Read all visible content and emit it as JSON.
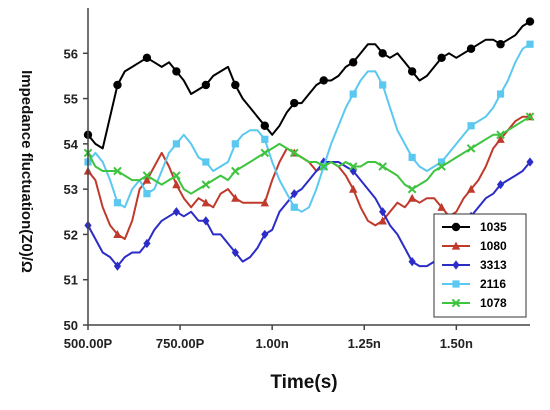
{
  "chart_data": {
    "type": "line",
    "title": "",
    "xlabel": "Time(s)",
    "ylabel": "Impedance fluctuation(Z0)/Ω",
    "xlim": [
      0.5,
      1.7
    ],
    "ylim": [
      50,
      57
    ],
    "x_ticks": [
      {
        "value": 0.5,
        "label": "500.00P"
      },
      {
        "value": 0.75,
        "label": "750.00P"
      },
      {
        "value": 1.0,
        "label": "1.00n"
      },
      {
        "value": 1.25,
        "label": "1.25n"
      },
      {
        "value": 1.5,
        "label": "1.50n"
      }
    ],
    "y_ticks": [
      50,
      51,
      52,
      53,
      54,
      55,
      56
    ],
    "grid": false,
    "legend": "bottom-right",
    "series": [
      {
        "name": "1035",
        "color": "#000000",
        "marker": "circle",
        "x": [
          0.5,
          0.52,
          0.54,
          0.56,
          0.58,
          0.6,
          0.62,
          0.64,
          0.66,
          0.68,
          0.7,
          0.72,
          0.74,
          0.76,
          0.78,
          0.8,
          0.82,
          0.84,
          0.86,
          0.88,
          0.9,
          0.92,
          0.94,
          0.96,
          0.98,
          1.0,
          1.02,
          1.04,
          1.06,
          1.08,
          1.1,
          1.12,
          1.14,
          1.16,
          1.18,
          1.2,
          1.22,
          1.24,
          1.26,
          1.28,
          1.3,
          1.32,
          1.34,
          1.36,
          1.38,
          1.4,
          1.42,
          1.44,
          1.46,
          1.48,
          1.5,
          1.52,
          1.54,
          1.56,
          1.58,
          1.6,
          1.62,
          1.64,
          1.66,
          1.68,
          1.7
        ],
        "y": [
          54.2,
          54.0,
          53.9,
          54.6,
          55.3,
          55.6,
          55.7,
          55.8,
          55.9,
          55.8,
          55.7,
          55.8,
          55.6,
          55.4,
          55.1,
          55.2,
          55.3,
          55.5,
          55.6,
          55.7,
          55.3,
          55.0,
          54.8,
          54.6,
          54.4,
          54.2,
          54.4,
          54.7,
          54.9,
          54.9,
          55.1,
          55.3,
          55.4,
          55.4,
          55.5,
          55.7,
          55.8,
          56.0,
          56.2,
          56.2,
          56.0,
          55.9,
          56.0,
          55.8,
          55.6,
          55.4,
          55.5,
          55.7,
          55.9,
          56.0,
          55.9,
          56.0,
          56.1,
          56.2,
          56.3,
          56.3,
          56.2,
          56.3,
          56.4,
          56.6,
          56.7
        ]
      },
      {
        "name": "1080",
        "color": "#c0392b",
        "marker": "triangle",
        "x": [
          0.5,
          0.52,
          0.54,
          0.56,
          0.58,
          0.6,
          0.62,
          0.64,
          0.66,
          0.68,
          0.7,
          0.72,
          0.74,
          0.76,
          0.78,
          0.8,
          0.82,
          0.84,
          0.86,
          0.88,
          0.9,
          0.92,
          0.94,
          0.96,
          0.98,
          1.0,
          1.02,
          1.04,
          1.06,
          1.08,
          1.1,
          1.12,
          1.14,
          1.16,
          1.18,
          1.2,
          1.22,
          1.24,
          1.26,
          1.28,
          1.3,
          1.32,
          1.34,
          1.36,
          1.38,
          1.4,
          1.42,
          1.44,
          1.46,
          1.48,
          1.5,
          1.52,
          1.54,
          1.56,
          1.58,
          1.6,
          1.62,
          1.64,
          1.66,
          1.68,
          1.7
        ],
        "y": [
          53.4,
          53.2,
          52.6,
          52.2,
          52.0,
          51.9,
          52.3,
          53.0,
          53.2,
          53.5,
          53.8,
          53.5,
          53.1,
          52.8,
          52.6,
          52.8,
          52.7,
          52.6,
          52.9,
          53.0,
          52.8,
          52.7,
          52.7,
          52.7,
          52.7,
          53.2,
          53.6,
          53.9,
          53.8,
          53.7,
          53.6,
          53.4,
          53.5,
          53.6,
          53.5,
          53.3,
          53.0,
          52.6,
          52.3,
          52.2,
          52.3,
          52.5,
          52.7,
          52.6,
          52.8,
          52.7,
          52.8,
          52.8,
          52.6,
          52.4,
          52.5,
          52.8,
          53.0,
          53.2,
          53.5,
          53.9,
          54.1,
          54.3,
          54.5,
          54.6,
          54.6
        ]
      },
      {
        "name": "3313",
        "color": "#2c2cc8",
        "marker": "diamond",
        "x": [
          0.5,
          0.52,
          0.54,
          0.56,
          0.58,
          0.6,
          0.62,
          0.64,
          0.66,
          0.68,
          0.7,
          0.72,
          0.74,
          0.76,
          0.78,
          0.8,
          0.82,
          0.84,
          0.86,
          0.88,
          0.9,
          0.92,
          0.94,
          0.96,
          0.98,
          1.0,
          1.02,
          1.04,
          1.06,
          1.08,
          1.1,
          1.12,
          1.14,
          1.16,
          1.18,
          1.2,
          1.22,
          1.24,
          1.26,
          1.28,
          1.3,
          1.32,
          1.34,
          1.36,
          1.38,
          1.4,
          1.42,
          1.44,
          1.46,
          1.48,
          1.5,
          1.52,
          1.54,
          1.56,
          1.58,
          1.6,
          1.62,
          1.64,
          1.66,
          1.68,
          1.7
        ],
        "y": [
          52.2,
          51.9,
          51.6,
          51.5,
          51.3,
          51.5,
          51.6,
          51.6,
          51.8,
          52.1,
          52.3,
          52.4,
          52.5,
          52.4,
          52.5,
          52.3,
          52.3,
          52.0,
          52.0,
          51.8,
          51.6,
          51.4,
          51.5,
          51.7,
          52.0,
          52.1,
          52.5,
          52.7,
          52.9,
          53.0,
          53.2,
          53.4,
          53.6,
          53.6,
          53.6,
          53.5,
          53.4,
          53.2,
          53.0,
          52.8,
          52.5,
          52.2,
          52.0,
          51.7,
          51.4,
          51.3,
          51.3,
          51.4,
          51.5,
          51.6,
          51.9,
          52.1,
          52.4,
          52.6,
          52.8,
          52.9,
          53.1,
          53.2,
          53.3,
          53.4,
          53.6
        ]
      },
      {
        "name": "2116",
        "color": "#5bc8ef",
        "marker": "square",
        "x": [
          0.5,
          0.52,
          0.54,
          0.56,
          0.58,
          0.6,
          0.62,
          0.64,
          0.66,
          0.68,
          0.7,
          0.72,
          0.74,
          0.76,
          0.78,
          0.8,
          0.82,
          0.84,
          0.86,
          0.88,
          0.9,
          0.92,
          0.94,
          0.96,
          0.98,
          1.0,
          1.02,
          1.04,
          1.06,
          1.08,
          1.1,
          1.12,
          1.14,
          1.16,
          1.18,
          1.2,
          1.22,
          1.24,
          1.26,
          1.28,
          1.3,
          1.32,
          1.34,
          1.36,
          1.38,
          1.4,
          1.42,
          1.44,
          1.46,
          1.48,
          1.5,
          1.52,
          1.54,
          1.56,
          1.58,
          1.6,
          1.62,
          1.64,
          1.66,
          1.68,
          1.7
        ],
        "y": [
          53.6,
          53.8,
          53.6,
          53.2,
          52.7,
          52.6,
          53.0,
          53.2,
          52.9,
          53.0,
          53.4,
          53.8,
          54.0,
          54.2,
          54.0,
          53.7,
          53.6,
          53.4,
          53.5,
          53.6,
          54.0,
          54.2,
          54.3,
          54.3,
          54.1,
          53.6,
          53.2,
          52.9,
          52.6,
          52.5,
          52.6,
          53.0,
          53.5,
          54.0,
          54.4,
          54.8,
          55.1,
          55.4,
          55.6,
          55.6,
          55.3,
          54.8,
          54.3,
          54.0,
          53.7,
          53.5,
          53.4,
          53.5,
          53.6,
          53.8,
          54.0,
          54.2,
          54.4,
          54.5,
          54.6,
          54.8,
          55.1,
          55.4,
          55.8,
          56.1,
          56.2
        ]
      },
      {
        "name": "1078",
        "color": "#3ec43e",
        "marker": "x",
        "x": [
          0.5,
          0.52,
          0.54,
          0.56,
          0.58,
          0.6,
          0.62,
          0.64,
          0.66,
          0.68,
          0.7,
          0.72,
          0.74,
          0.76,
          0.78,
          0.8,
          0.82,
          0.84,
          0.86,
          0.88,
          0.9,
          0.92,
          0.94,
          0.96,
          0.98,
          1.0,
          1.02,
          1.04,
          1.06,
          1.08,
          1.1,
          1.12,
          1.14,
          1.16,
          1.18,
          1.2,
          1.22,
          1.24,
          1.26,
          1.28,
          1.3,
          1.32,
          1.34,
          1.36,
          1.38,
          1.4,
          1.42,
          1.44,
          1.46,
          1.48,
          1.5,
          1.52,
          1.54,
          1.56,
          1.58,
          1.6,
          1.62,
          1.64,
          1.66,
          1.68,
          1.7
        ],
        "y": [
          53.8,
          53.5,
          53.4,
          53.4,
          53.4,
          53.3,
          53.2,
          53.2,
          53.3,
          53.2,
          53.1,
          53.2,
          53.3,
          53.0,
          52.9,
          53.0,
          53.1,
          53.2,
          53.3,
          53.2,
          53.4,
          53.5,
          53.6,
          53.7,
          53.8,
          53.9,
          54.0,
          53.9,
          53.8,
          53.7,
          53.6,
          53.6,
          53.5,
          53.6,
          53.5,
          53.6,
          53.5,
          53.5,
          53.6,
          53.6,
          53.5,
          53.4,
          53.3,
          53.1,
          53.0,
          53.1,
          53.2,
          53.4,
          53.5,
          53.6,
          53.7,
          53.8,
          53.9,
          54.0,
          54.1,
          54.2,
          54.2,
          54.3,
          54.4,
          54.5,
          54.6
        ]
      }
    ]
  }
}
